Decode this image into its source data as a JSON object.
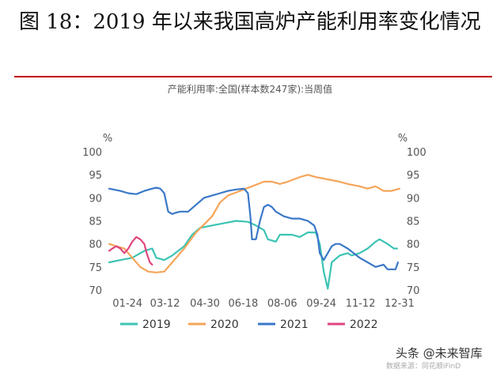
{
  "figure": {
    "title": "图 18：2019 年以来我国高炉产能利用率变化情况",
    "chart_subtitle": "产能利用率:全国(样本数247家):当周值"
  },
  "watermark": {
    "main": "头条 @未来智库",
    "source": "数据来源：同花顺iFinD"
  },
  "colors": {
    "2019": "#3cc3b4",
    "2020": "#f5a55a",
    "2021": "#3a78c8",
    "2022": "#e0457f"
  },
  "chart_data": {
    "type": "line",
    "title": "产能利用率:全国(样本数247家):当周值",
    "y_unit_left": "%",
    "y_unit_right": "%",
    "ylim": [
      70,
      100
    ],
    "yticks": [
      70,
      75,
      80,
      85,
      90,
      95,
      100
    ],
    "xlim": [
      1,
      365
    ],
    "x_ticks": [
      {
        "day": 24,
        "label": "01-24"
      },
      {
        "day": 71,
        "label": "03-12"
      },
      {
        "day": 121,
        "label": "04-30"
      },
      {
        "day": 169,
        "label": "06-18"
      },
      {
        "day": 218,
        "label": "08-06"
      },
      {
        "day": 267,
        "label": "09-24"
      },
      {
        "day": 316,
        "label": "11-12"
      },
      {
        "day": 365,
        "label": "12-31"
      }
    ],
    "legend_position": "bottom",
    "grid": false,
    "series": [
      {
        "name": "2019",
        "points": [
          [
            1,
            76
          ],
          [
            15,
            76.5
          ],
          [
            30,
            77
          ],
          [
            45,
            78.5
          ],
          [
            55,
            79
          ],
          [
            60,
            77
          ],
          [
            70,
            76.5
          ],
          [
            80,
            77.5
          ],
          [
            95,
            79.5
          ],
          [
            105,
            82
          ],
          [
            115,
            83.5
          ],
          [
            130,
            84
          ],
          [
            145,
            84.5
          ],
          [
            160,
            85
          ],
          [
            175,
            84.8
          ],
          [
            185,
            84
          ],
          [
            195,
            83
          ],
          [
            200,
            81
          ],
          [
            210,
            80.5
          ],
          [
            215,
            82
          ],
          [
            230,
            82
          ],
          [
            240,
            81.5
          ],
          [
            250,
            82.5
          ],
          [
            260,
            82.5
          ],
          [
            265,
            80
          ],
          [
            270,
            74
          ],
          [
            275,
            70.3
          ],
          [
            280,
            76
          ],
          [
            290,
            77.5
          ],
          [
            300,
            78
          ],
          [
            305,
            77.5
          ],
          [
            315,
            78
          ],
          [
            325,
            79
          ],
          [
            335,
            80.5
          ],
          [
            340,
            81
          ],
          [
            350,
            80
          ],
          [
            358,
            79
          ],
          [
            362,
            79
          ]
        ]
      },
      {
        "name": "2020",
        "points": [
          [
            1,
            80
          ],
          [
            10,
            79.5
          ],
          [
            20,
            79
          ],
          [
            30,
            77
          ],
          [
            40,
            75
          ],
          [
            50,
            74
          ],
          [
            60,
            73.8
          ],
          [
            70,
            74
          ],
          [
            80,
            76
          ],
          [
            95,
            79
          ],
          [
            110,
            82.5
          ],
          [
            130,
            86
          ],
          [
            140,
            89
          ],
          [
            150,
            90.5
          ],
          [
            165,
            91.5
          ],
          [
            180,
            92.5
          ],
          [
            195,
            93.5
          ],
          [
            205,
            93.5
          ],
          [
            215,
            93
          ],
          [
            225,
            93.5
          ],
          [
            240,
            94.5
          ],
          [
            250,
            95
          ],
          [
            260,
            94.5
          ],
          [
            275,
            94
          ],
          [
            290,
            93.5
          ],
          [
            300,
            93
          ],
          [
            315,
            92.5
          ],
          [
            325,
            92
          ],
          [
            335,
            92.5
          ],
          [
            345,
            91.5
          ],
          [
            355,
            91.5
          ],
          [
            365,
            92
          ]
        ]
      },
      {
        "name": "2021",
        "points": [
          [
            1,
            92
          ],
          [
            15,
            91.5
          ],
          [
            25,
            91
          ],
          [
            35,
            90.8
          ],
          [
            45,
            91.5
          ],
          [
            55,
            92
          ],
          [
            60,
            92.2
          ],
          [
            65,
            92
          ],
          [
            70,
            91
          ],
          [
            75,
            87
          ],
          [
            80,
            86.5
          ],
          [
            85,
            86.8
          ],
          [
            90,
            87
          ],
          [
            100,
            87
          ],
          [
            110,
            88.5
          ],
          [
            120,
            90
          ],
          [
            130,
            90.5
          ],
          [
            140,
            91
          ],
          [
            150,
            91.5
          ],
          [
            160,
            91.8
          ],
          [
            170,
            92
          ],
          [
            175,
            91
          ],
          [
            178,
            86
          ],
          [
            180,
            81
          ],
          [
            185,
            81
          ],
          [
            190,
            85
          ],
          [
            195,
            88
          ],
          [
            200,
            88.5
          ],
          [
            205,
            88
          ],
          [
            210,
            87
          ],
          [
            220,
            86
          ],
          [
            230,
            85.5
          ],
          [
            240,
            85.5
          ],
          [
            250,
            85
          ],
          [
            258,
            84
          ],
          [
            262,
            82
          ],
          [
            265,
            78
          ],
          [
            270,
            76.5
          ],
          [
            275,
            78
          ],
          [
            280,
            79.5
          ],
          [
            285,
            80
          ],
          [
            290,
            80
          ],
          [
            300,
            79
          ],
          [
            315,
            77
          ],
          [
            325,
            76
          ],
          [
            335,
            75
          ],
          [
            345,
            75.5
          ],
          [
            350,
            74.5
          ],
          [
            360,
            74.5
          ],
          [
            363,
            76
          ]
        ]
      },
      {
        "name": "2022",
        "points": [
          [
            1,
            78.5
          ],
          [
            5,
            79
          ],
          [
            10,
            79.5
          ],
          [
            15,
            79
          ],
          [
            20,
            78
          ],
          [
            25,
            79
          ],
          [
            30,
            80.5
          ],
          [
            35,
            81.5
          ],
          [
            40,
            81
          ],
          [
            45,
            80
          ],
          [
            48,
            78
          ],
          [
            52,
            76
          ],
          [
            55,
            75.5
          ]
        ]
      }
    ]
  }
}
